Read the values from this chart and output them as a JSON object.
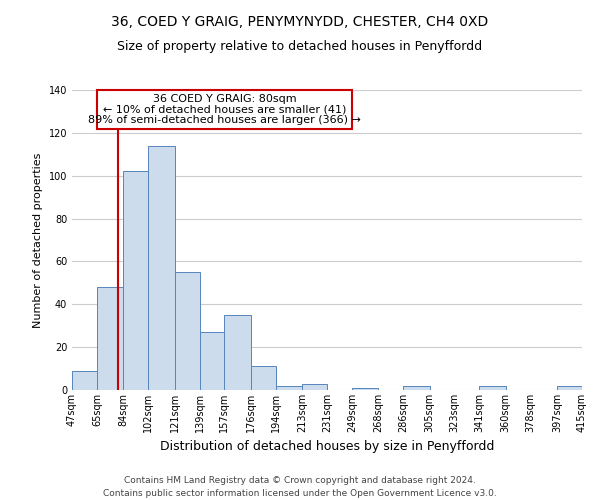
{
  "title": "36, COED Y GRAIG, PENYMYNYDD, CHESTER, CH4 0XD",
  "subtitle": "Size of property relative to detached houses in Penyffordd",
  "xlabel": "Distribution of detached houses by size in Penyffordd",
  "ylabel": "Number of detached properties",
  "bin_labels": [
    "47sqm",
    "65sqm",
    "84sqm",
    "102sqm",
    "121sqm",
    "139sqm",
    "157sqm",
    "176sqm",
    "194sqm",
    "213sqm",
    "231sqm",
    "249sqm",
    "268sqm",
    "286sqm",
    "305sqm",
    "323sqm",
    "341sqm",
    "360sqm",
    "378sqm",
    "397sqm",
    "415sqm"
  ],
  "bin_edges": [
    47,
    65,
    84,
    102,
    121,
    139,
    157,
    176,
    194,
    213,
    231,
    249,
    268,
    286,
    305,
    323,
    341,
    360,
    378,
    397,
    415
  ],
  "bar_heights": [
    9,
    48,
    102,
    114,
    55,
    27,
    35,
    11,
    2,
    3,
    0,
    1,
    0,
    2,
    0,
    0,
    2,
    0,
    0,
    2
  ],
  "bar_color": "#ccdcec",
  "bar_edge_color": "#5585bb",
  "vline_x": 80,
  "vline_color": "#cc0000",
  "annotation_line1": "36 COED Y GRAIG: 80sqm",
  "annotation_line2": "← 10% of detached houses are smaller (41)",
  "annotation_line3": "89% of semi-detached houses are larger (366) →",
  "annotation_box_color": "#cc0000",
  "annotation_text_color": "#000000",
  "ylim": [
    0,
    140
  ],
  "yticks": [
    0,
    20,
    40,
    60,
    80,
    100,
    120,
    140
  ],
  "grid_color": "#cccccc",
  "background_color": "#ffffff",
  "footnote": "Contains HM Land Registry data © Crown copyright and database right 2024.\nContains public sector information licensed under the Open Government Licence v3.0.",
  "title_fontsize": 10,
  "subtitle_fontsize": 9,
  "xlabel_fontsize": 9,
  "ylabel_fontsize": 8,
  "tick_fontsize": 7,
  "annotation_fontsize": 8,
  "footnote_fontsize": 6.5
}
